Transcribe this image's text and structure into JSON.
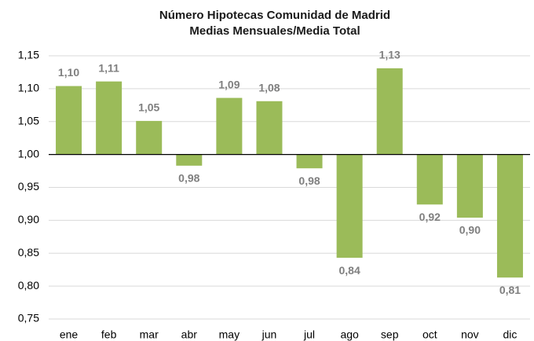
{
  "chart_data": {
    "type": "bar",
    "title": [
      "Número Hipotecas Comunidad  de Madrid",
      "Medias Mensuales/Media Total"
    ],
    "categories": [
      "ene",
      "feb",
      "mar",
      "abr",
      "may",
      "jun",
      "jul",
      "ago",
      "sep",
      "oct",
      "nov",
      "dic"
    ],
    "values": [
      1.104,
      1.111,
      1.051,
      0.983,
      1.086,
      1.081,
      0.979,
      0.843,
      1.131,
      0.924,
      0.904,
      0.813
    ],
    "value_labels": [
      "1,10",
      "1,11",
      "1,05",
      "0,98",
      "1,09",
      "1,08",
      "0,98",
      "0,84",
      "1,13",
      "0,92",
      "0,90",
      "0,81"
    ],
    "color": "#9bbb59",
    "ylim": [
      0.75,
      1.15
    ],
    "yticks": [
      {
        "value": 0.75,
        "label": "0,75"
      },
      {
        "value": 0.8,
        "label": "0,80"
      },
      {
        "value": 0.85,
        "label": "0,85"
      },
      {
        "value": 0.9,
        "label": "0,90"
      },
      {
        "value": 0.95,
        "label": "0,95"
      },
      {
        "value": 1,
        "label": "1,00"
      },
      {
        "value": 1.05,
        "label": "1,05"
      },
      {
        "value": 1.1,
        "label": "1,10"
      },
      {
        "value": 1.15,
        "label": "1,15"
      }
    ],
    "baseline": 1,
    "grid": true
  }
}
